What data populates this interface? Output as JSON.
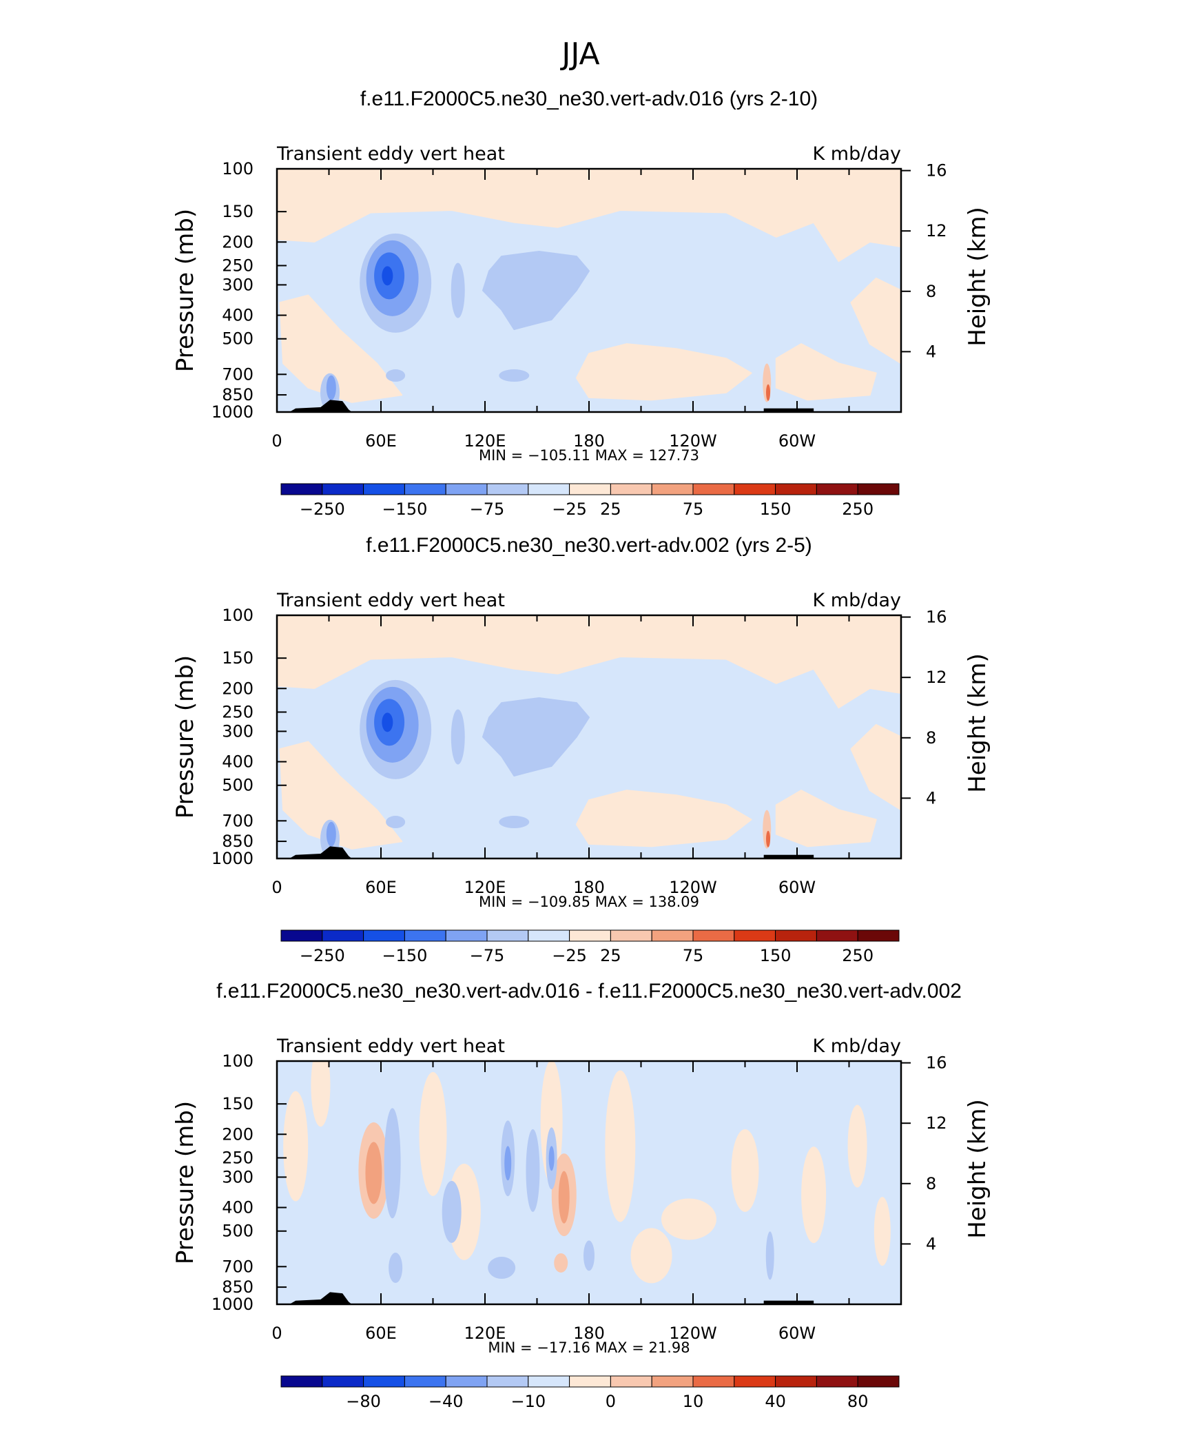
{
  "page_title": "JJA",
  "chart_data": [
    {
      "type": "heatmap",
      "title": "f.e11.F2000C5.ne30_ne30.vert-adv.016 (yrs 2-10)",
      "left_string": "Transient eddy vert heat",
      "right_string": "K mb/day",
      "ylabel": "Pressure (mb)",
      "ylabel_right": "Height (km)",
      "x_ticks": [
        "0",
        "60E",
        "120E",
        "180",
        "120W",
        "60W"
      ],
      "y_ticks": [
        "100",
        "150",
        "200",
        "250",
        "300",
        "400",
        "500",
        "700",
        "850",
        "1000"
      ],
      "y_ticks_right": [
        "16",
        "12",
        "8",
        "4"
      ],
      "min_max": "MIN = −105.11   MAX = 127.73",
      "colorbar_labels": [
        "−250",
        "−150",
        "−75",
        "−25",
        "25",
        "75",
        "150",
        "250"
      ],
      "colorbar_colors": [
        "#08088f",
        "#0b2ac8",
        "#1550e6",
        "#3c74f0",
        "#7fa3f3",
        "#b3c9f4",
        "#d6e6fb",
        "#fde8d6",
        "#f8c8b0",
        "#f2a27f",
        "#ea6b45",
        "#db3a16",
        "#b8230d",
        "#8f1212",
        "#6b0808"
      ]
    },
    {
      "type": "heatmap",
      "title": "f.e11.F2000C5.ne30_ne30.vert-adv.002 (yrs 2-5)",
      "left_string": "Transient eddy vert heat",
      "right_string": "K mb/day",
      "ylabel": "Pressure (mb)",
      "ylabel_right": "Height (km)",
      "x_ticks": [
        "0",
        "60E",
        "120E",
        "180",
        "120W",
        "60W"
      ],
      "y_ticks": [
        "100",
        "150",
        "200",
        "250",
        "300",
        "400",
        "500",
        "700",
        "850",
        "1000"
      ],
      "y_ticks_right": [
        "16",
        "12",
        "8",
        "4"
      ],
      "min_max": "MIN = −109.85   MAX = 138.09",
      "colorbar_labels": [
        "−250",
        "−150",
        "−75",
        "−25",
        "25",
        "75",
        "150",
        "250"
      ],
      "colorbar_colors": [
        "#08088f",
        "#0b2ac8",
        "#1550e6",
        "#3c74f0",
        "#7fa3f3",
        "#b3c9f4",
        "#d6e6fb",
        "#fde8d6",
        "#f8c8b0",
        "#f2a27f",
        "#ea6b45",
        "#db3a16",
        "#b8230d",
        "#8f1212",
        "#6b0808"
      ]
    },
    {
      "type": "heatmap",
      "title": "f.e11.F2000C5.ne30_ne30.vert-adv.016 - f.e11.F2000C5.ne30_ne30.vert-adv.002",
      "left_string": "Transient eddy vert heat",
      "right_string": "K mb/day",
      "ylabel": "Pressure (mb)",
      "ylabel_right": "Height (km)",
      "x_ticks": [
        "0",
        "60E",
        "120E",
        "180",
        "120W",
        "60W"
      ],
      "y_ticks": [
        "100",
        "150",
        "200",
        "250",
        "300",
        "400",
        "500",
        "700",
        "850",
        "1000"
      ],
      "y_ticks_right": [
        "16",
        "12",
        "8",
        "4"
      ],
      "min_max": "MIN = −17.16   MAX =   21.98",
      "colorbar_labels": [
        "−80",
        "−40",
        "−10",
        "0",
        "10",
        "40",
        "80"
      ],
      "colorbar_colors": [
        "#08088f",
        "#0b2ac8",
        "#1550e6",
        "#3c74f0",
        "#7fa3f3",
        "#b3c9f4",
        "#d6e6fb",
        "#fde8d6",
        "#f8c8b0",
        "#f2a27f",
        "#ea6b45",
        "#db3a16",
        "#b8230d",
        "#8f1212",
        "#6b0808"
      ]
    }
  ]
}
